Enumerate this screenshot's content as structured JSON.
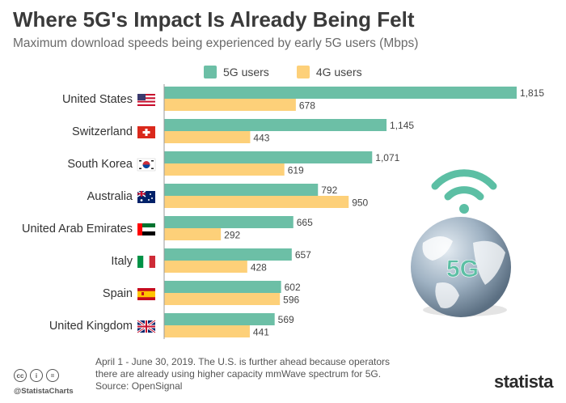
{
  "header": {
    "title": "Where 5G's Impact Is Already Being Felt",
    "subtitle": "Maximum download speeds being experienced by early 5G users (Mbps)"
  },
  "colors": {
    "five_g": "#6cbfa6",
    "four_g": "#fdd079",
    "globe": "#8aa3b8",
    "signal": "#5cbfa4"
  },
  "chart_data": {
    "type": "bar",
    "orientation": "horizontal",
    "categories": [
      "United States",
      "Switzerland",
      "South Korea",
      "Australia",
      "United Arab Emirates",
      "Italy",
      "Spain",
      "United Kingdom"
    ],
    "series": [
      {
        "name": "5G users",
        "values": [
          1815,
          1145,
          1071,
          792,
          665,
          657,
          602,
          569
        ]
      },
      {
        "name": "4G users",
        "values": [
          678,
          443,
          619,
          950,
          292,
          428,
          596,
          441
        ]
      }
    ],
    "data_labels": {
      "five_g": [
        "1,815",
        "1,145",
        "1,071",
        "792",
        "665",
        "657",
        "602",
        "569"
      ],
      "four_g": [
        "678",
        "443",
        "619",
        "950",
        "292",
        "428",
        "596",
        "441"
      ]
    },
    "legend_position": "top",
    "grid": false,
    "xlim": [
      0,
      1815
    ]
  },
  "illustration": {
    "globe_label": "5G",
    "icons": [
      "wifi-signal-icon",
      "globe-icon"
    ]
  },
  "footer": {
    "note": "April 1 - June 30, 2019. The U.S. is further ahead because operators\nthere are already using higher capacity mmWave spectrum for 5G.",
    "source": "Source: OpenSignal",
    "handle": "@StatistaCharts",
    "brand": "statista",
    "license_icons": [
      "cc",
      "i",
      "="
    ]
  }
}
